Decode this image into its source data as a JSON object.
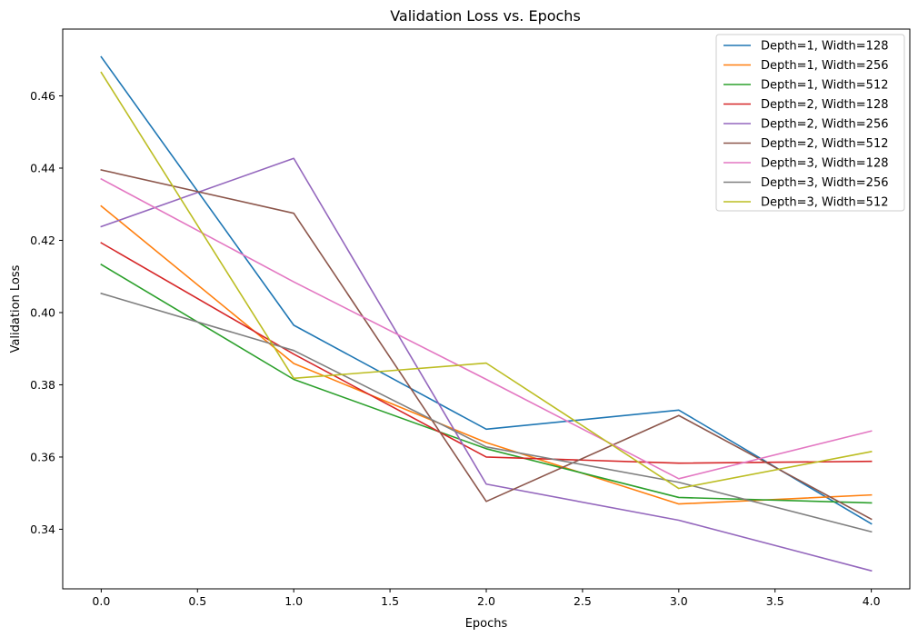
{
  "chart_data": {
    "type": "line",
    "title": "Validation Loss vs. Epochs",
    "xlabel": "Epochs",
    "ylabel": "Validation Loss",
    "xlim": [
      -0.2,
      4.2
    ],
    "ylim": [
      0.3235,
      0.4785
    ],
    "xticks": [
      0.0,
      0.5,
      1.0,
      1.5,
      2.0,
      2.5,
      3.0,
      3.5,
      4.0
    ],
    "xtick_labels": [
      "0.0",
      "0.5",
      "1.0",
      "1.5",
      "2.0",
      "2.5",
      "3.0",
      "3.5",
      "4.0"
    ],
    "yticks": [
      0.34,
      0.36,
      0.38,
      0.4,
      0.42,
      0.44,
      0.46
    ],
    "ytick_labels": [
      "0.34",
      "0.36",
      "0.38",
      "0.40",
      "0.42",
      "0.44",
      "0.46"
    ],
    "grid": false,
    "legend_position": "top-right",
    "x": [
      0,
      1,
      2,
      3,
      4
    ],
    "series": [
      {
        "name": "Depth=1, Width=128",
        "color": "#1f77b4",
        "values": [
          0.4708,
          0.3965,
          0.3677,
          0.373,
          0.3415
        ]
      },
      {
        "name": "Depth=1, Width=256",
        "color": "#ff7f0e",
        "values": [
          0.4295,
          0.3859,
          0.364,
          0.347,
          0.3495
        ]
      },
      {
        "name": "Depth=1, Width=512",
        "color": "#2ca02c",
        "values": [
          0.4133,
          0.3815,
          0.3623,
          0.3488,
          0.3473
        ]
      },
      {
        "name": "Depth=2, Width=128",
        "color": "#d62728",
        "values": [
          0.4193,
          0.3885,
          0.36,
          0.3583,
          0.3588
        ]
      },
      {
        "name": "Depth=2, Width=256",
        "color": "#9467bd",
        "values": [
          0.4238,
          0.4427,
          0.3525,
          0.3425,
          0.3285
        ]
      },
      {
        "name": "Depth=2, Width=512",
        "color": "#8c564b",
        "values": [
          0.4395,
          0.4275,
          0.3477,
          0.3715,
          0.3428
        ]
      },
      {
        "name": "Depth=3, Width=128",
        "color": "#e377c2",
        "values": [
          0.437,
          0.4085,
          0.3815,
          0.354,
          0.3672
        ]
      },
      {
        "name": "Depth=3, Width=256",
        "color": "#7f7f7f",
        "values": [
          0.4053,
          0.3895,
          0.3628,
          0.353,
          0.3393
        ]
      },
      {
        "name": "Depth=3, Width=512",
        "color": "#bcbd22",
        "values": [
          0.4665,
          0.3818,
          0.386,
          0.3513,
          0.3615
        ]
      }
    ]
  }
}
